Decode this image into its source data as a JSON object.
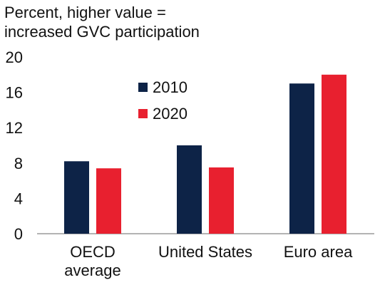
{
  "chart_data": {
    "type": "bar",
    "ylabel": "Percent, higher value =\nincreased GVC participation",
    "categories": [
      "OECD\naverage",
      "United States",
      "Euro area"
    ],
    "series": [
      {
        "name": "2010",
        "color": "#0d2347",
        "values": [
          8.2,
          10.0,
          17.0
        ]
      },
      {
        "name": "2020",
        "color": "#e8202f",
        "values": [
          7.4,
          7.5,
          18.0
        ]
      }
    ],
    "ylim": [
      0,
      20
    ],
    "yticks": [
      0,
      4,
      8,
      12,
      16,
      20
    ],
    "grid": false,
    "legend_position": "top-center"
  }
}
